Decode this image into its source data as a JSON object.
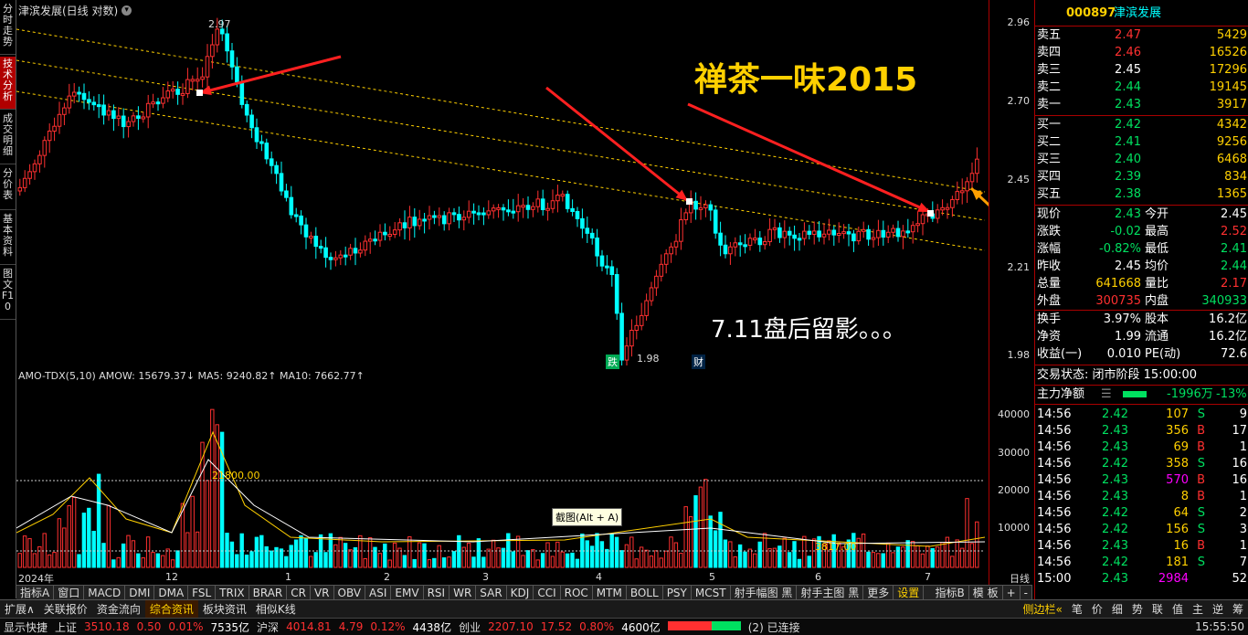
{
  "left_tabs": [
    "分时走势",
    "技术分析",
    "成交明细",
    "分价表",
    "基本资料",
    "图文F10"
  ],
  "main": {
    "title": "津滨发展(日线 对数)",
    "high_label": "2.97",
    "low_label": "1.98",
    "watermark": "禅茶一味2015",
    "note": "7.11盘后留影。。。",
    "tag_die": "跌",
    "tag_cai": "财",
    "y_ticks": [
      "2.96",
      "2.70",
      "2.45",
      "2.21",
      "1.98"
    ]
  },
  "vol": {
    "header": "AMO-TDX(5,10)  AMOW: 15679.37↓  MA5: 9240.82↑  MA10: 7662.77↑",
    "h_label": "21800.00",
    "l_label": "3817.00",
    "tooltip": "截图(Alt + A)",
    "y_ticks": [
      "40000",
      "30000",
      "20000",
      "10000"
    ]
  },
  "x_axis": [
    "2024年",
    "12",
    "1",
    "2",
    "3",
    "4",
    "5",
    "6",
    "7"
  ],
  "x_axis_right": "日线",
  "indicator_tabs": [
    "指标A",
    "窗口",
    "MACD",
    "DMI",
    "DMA",
    "FSL",
    "TRIX",
    "BRAR",
    "CR",
    "VR",
    "OBV",
    "ASI",
    "EMV",
    "RSI",
    "WR",
    "SAR",
    "KDJ",
    "CCI",
    "ROC",
    "MTM",
    "BOLL",
    "PSY",
    "MCST",
    "射手幅图 黑",
    "射手主图 黑",
    "更多",
    "设置",
    "",
    "指标B",
    "模 板",
    "+",
    "-"
  ],
  "sub_tabs": [
    "扩展∧",
    "关联报价",
    "资金流向",
    "综合资讯",
    "板块资讯",
    "相似K线",
    "侧边栏«",
    "笔",
    "价",
    "细",
    "势",
    "联",
    "值",
    "主",
    "逆",
    "筹"
  ],
  "status": {
    "quick": "显示快捷",
    "sh_label": "上证",
    "sh_val": "3510.18",
    "sh_chg": "0.50",
    "sh_pct": "0.01%",
    "sh_amt": "7535亿",
    "hs_label": "沪深",
    "hs_val": "4014.81",
    "hs_chg": "4.79",
    "hs_pct": "0.12%",
    "hs_amt": "4438亿",
    "cy_label": "创业",
    "cy_val": "2207.10",
    "cy_chg": "17.52",
    "cy_pct": "0.80%",
    "cy_amt": "4600亿",
    "conn": "(2) 已连接",
    "time": "15:55:50"
  },
  "quote": {
    "code": "000897",
    "name": "津滨发展",
    "sells": [
      {
        "l": "卖五",
        "p": "2.47",
        "v": "5429"
      },
      {
        "l": "卖四",
        "p": "2.46",
        "v": "16526"
      },
      {
        "l": "卖三",
        "p": "2.45",
        "v": "17296"
      },
      {
        "l": "卖二",
        "p": "2.44",
        "v": "19145"
      },
      {
        "l": "卖一",
        "p": "2.43",
        "v": "3917"
      }
    ],
    "buys": [
      {
        "l": "买一",
        "p": "2.42",
        "v": "4342"
      },
      {
        "l": "买二",
        "p": "2.41",
        "v": "9256"
      },
      {
        "l": "买三",
        "p": "2.40",
        "v": "6468"
      },
      {
        "l": "买四",
        "p": "2.39",
        "v": "834"
      },
      {
        "l": "买五",
        "p": "2.38",
        "v": "1365"
      }
    ],
    "stats": [
      {
        "a": "现价",
        "av": "2.43",
        "b": "今开",
        "bv": "2.45"
      },
      {
        "a": "涨跌",
        "av": "-0.02",
        "b": "最高",
        "bv": "2.52"
      },
      {
        "a": "涨幅",
        "av": "-0.82%",
        "b": "最低",
        "bv": "2.41"
      },
      {
        "a": "昨收",
        "av": "2.45",
        "b": "均价",
        "bv": "2.44"
      },
      {
        "a": "总量",
        "av": "641668",
        "b": "量比",
        "bv": "2.17"
      },
      {
        "a": "外盘",
        "av": "300735",
        "b": "内盘",
        "bv": "340933"
      }
    ],
    "stats2": [
      {
        "a": "换手",
        "av": "3.97%",
        "b": "股本",
        "bv": "16.2亿"
      },
      {
        "a": "净资",
        "av": "1.99",
        "b": "流通",
        "bv": "16.2亿"
      },
      {
        "a": "收益(一)",
        "av": "0.010",
        "b": "PE(动)",
        "bv": "72.6"
      }
    ],
    "trade_state": "交易状态: 闭市阶段 15:00:00",
    "main_flow_label": "主力净额",
    "main_flow_val": "-1996万",
    "main_flow_pct": "-13%",
    "ticks": [
      {
        "t": "14:56",
        "p": "2.42",
        "v": "107",
        "s": "S",
        "n": "9"
      },
      {
        "t": "14:56",
        "p": "2.43",
        "v": "356",
        "s": "B",
        "n": "17"
      },
      {
        "t": "14:56",
        "p": "2.43",
        "v": "69",
        "s": "B",
        "n": "1"
      },
      {
        "t": "14:56",
        "p": "2.42",
        "v": "358",
        "s": "S",
        "n": "16"
      },
      {
        "t": "14:56",
        "p": "2.43",
        "v": "570",
        "s": "B",
        "n": "16"
      },
      {
        "t": "14:56",
        "p": "2.43",
        "v": "8",
        "s": "B",
        "n": "1"
      },
      {
        "t": "14:56",
        "p": "2.42",
        "v": "64",
        "s": "S",
        "n": "2"
      },
      {
        "t": "14:56",
        "p": "2.42",
        "v": "156",
        "s": "S",
        "n": "3"
      },
      {
        "t": "14:56",
        "p": "2.43",
        "v": "16",
        "s": "B",
        "n": "1"
      },
      {
        "t": "14:56",
        "p": "2.42",
        "v": "181",
        "s": "S",
        "n": "7"
      },
      {
        "t": "15:00",
        "p": "2.43",
        "v": "2984",
        "s": "",
        "n": "52"
      }
    ]
  },
  "colors": {
    "up": "#ff3030",
    "down": "#00ffff",
    "grid": "#a00000",
    "yellow": "#ffd000"
  }
}
